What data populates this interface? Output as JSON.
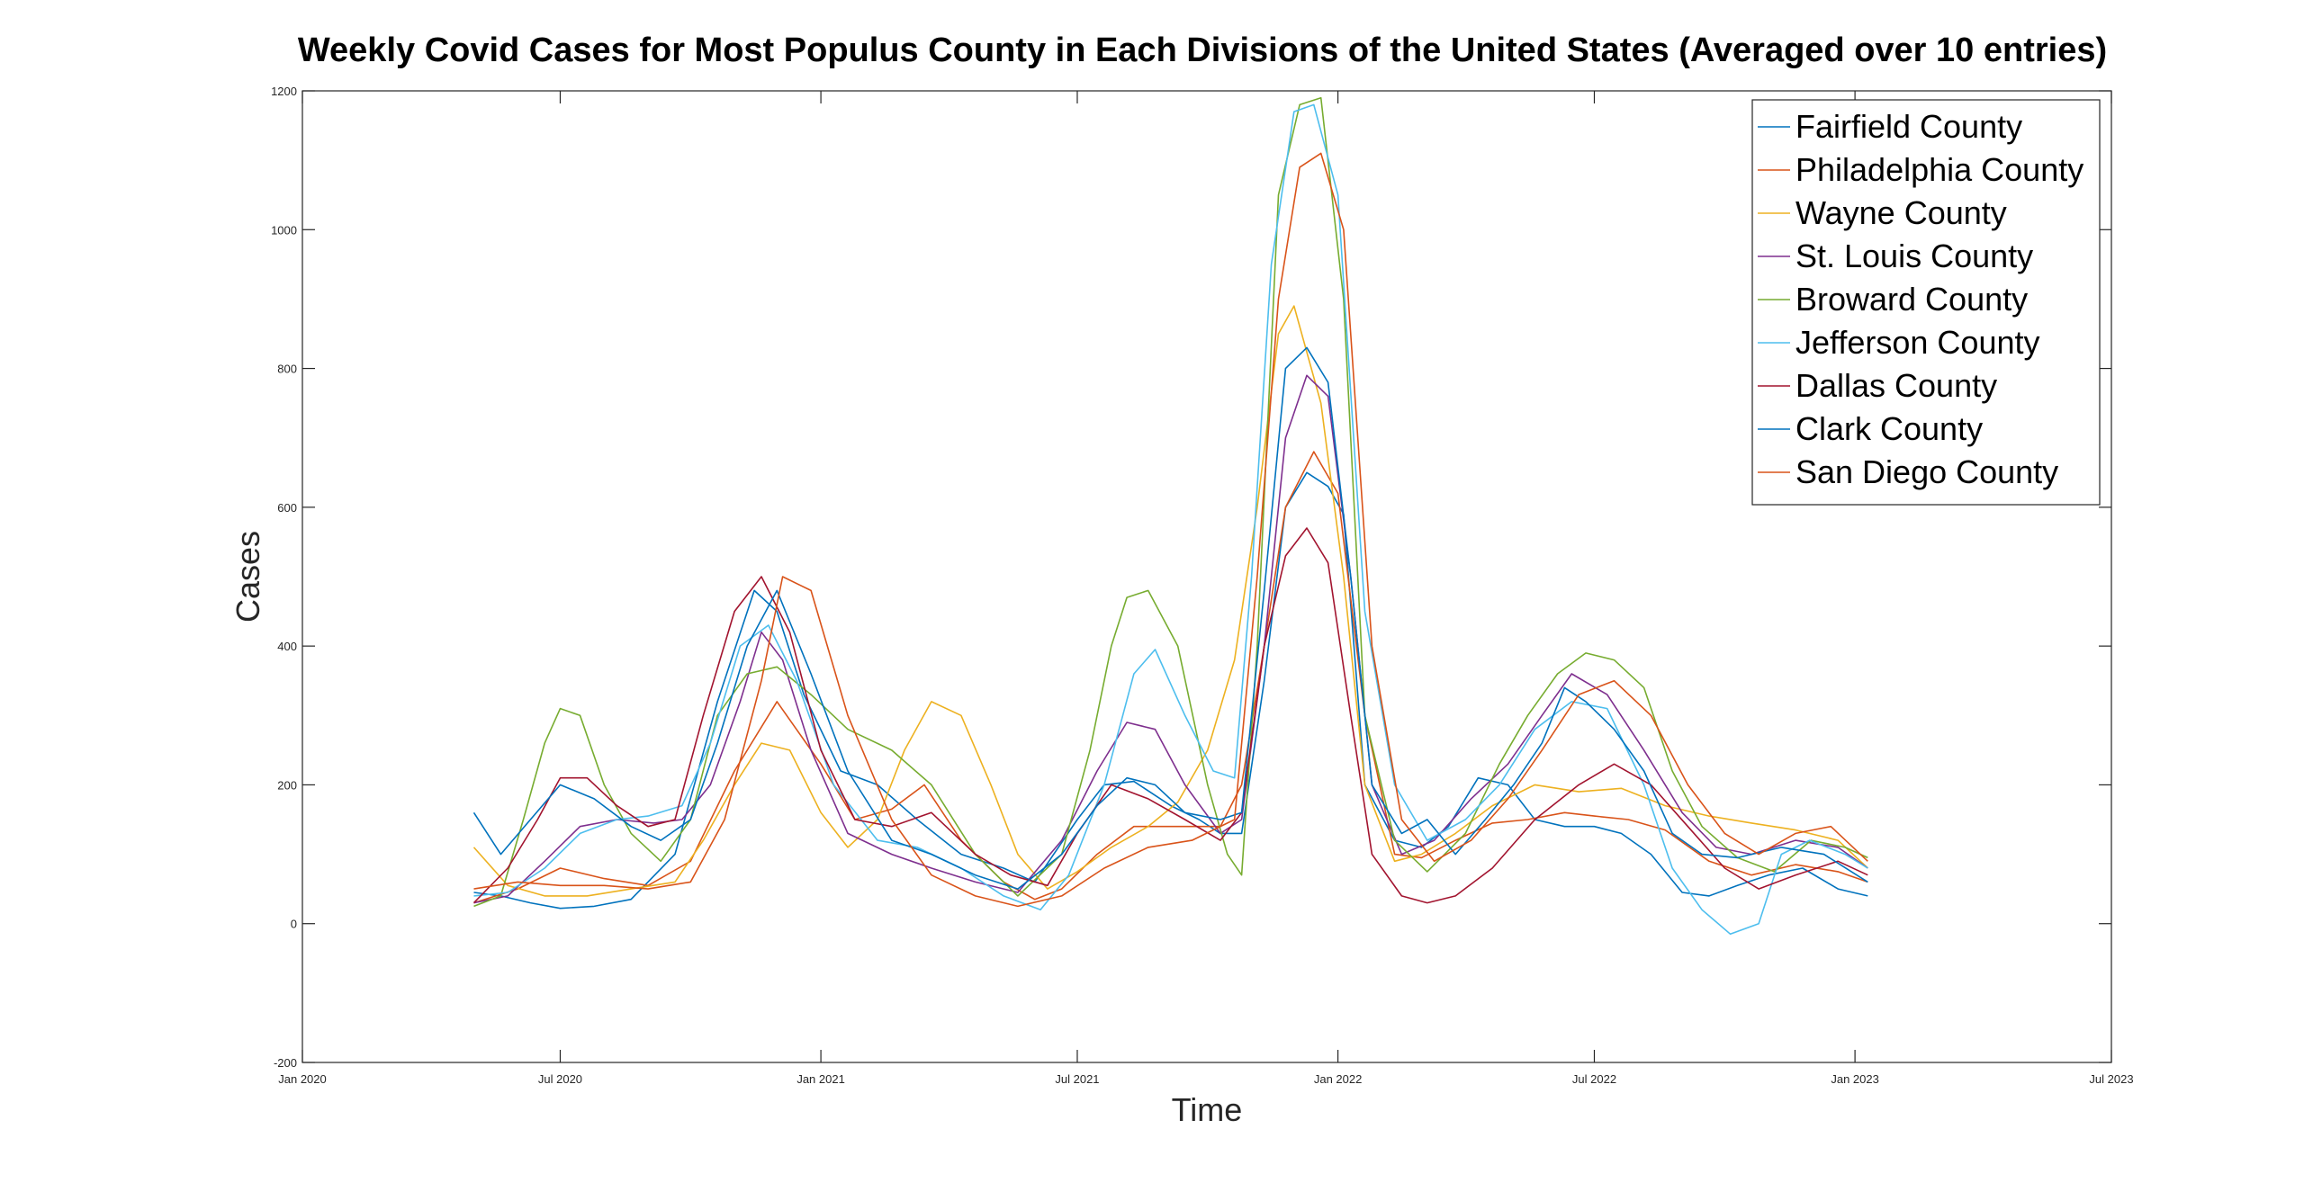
{
  "chart_data": {
    "type": "line",
    "title": "Weekly Covid Cases for Most Populus County in Each Divisions of the United States (Averaged over 10 entries)",
    "xlabel": "Time",
    "ylabel": "Cases",
    "xlim": [
      "2020-01-01",
      "2023-07-01"
    ],
    "ylim": [
      -200,
      1200
    ],
    "xticks": [
      {
        "date": "2020-01-01",
        "label": "Jan 2020"
      },
      {
        "date": "2020-07-01",
        "label": "Jul 2020"
      },
      {
        "date": "2021-01-01",
        "label": "Jan 2021"
      },
      {
        "date": "2021-07-01",
        "label": "Jul 2021"
      },
      {
        "date": "2022-01-01",
        "label": "Jan 2022"
      },
      {
        "date": "2022-07-01",
        "label": "Jul 2022"
      },
      {
        "date": "2023-01-01",
        "label": "Jan 2023"
      },
      {
        "date": "2023-07-01",
        "label": "Jul 2023"
      }
    ],
    "yticks": [
      -200,
      0,
      200,
      400,
      600,
      800,
      1000,
      1200
    ],
    "grid": false,
    "legend_position": "top-right",
    "series": [
      {
        "name": "Fairfield County",
        "color": "#0072BD",
        "x": [
          "2020-05-01",
          "2020-05-20",
          "2020-06-10",
          "2020-07-01",
          "2020-07-25",
          "2020-08-20",
          "2020-09-20",
          "2020-10-20",
          "2020-11-15",
          "2020-12-01",
          "2020-12-20",
          "2021-01-15",
          "2021-02-10",
          "2021-03-10",
          "2021-04-10",
          "2021-05-10",
          "2021-06-01",
          "2021-07-01",
          "2021-07-20",
          "2021-08-10",
          "2021-09-05",
          "2021-09-25",
          "2021-10-10",
          "2021-10-25",
          "2021-11-10",
          "2021-11-25",
          "2021-12-10",
          "2021-12-25",
          "2022-01-05",
          "2022-01-20",
          "2022-02-10",
          "2022-03-01",
          "2022-03-20",
          "2022-04-10",
          "2022-05-01",
          "2022-05-20",
          "2022-06-10",
          "2022-07-01",
          "2022-07-20",
          "2022-08-10",
          "2022-09-01",
          "2022-09-20",
          "2022-10-10",
          "2022-11-01",
          "2022-11-25",
          "2022-12-20",
          "2023-01-10"
        ],
        "y": [
          45,
          40,
          30,
          22,
          25,
          35,
          100,
          320,
          480,
          450,
          330,
          220,
          200,
          150,
          100,
          80,
          60,
          150,
          200,
          205,
          170,
          150,
          130,
          130,
          350,
          600,
          650,
          630,
          590,
          200,
          120,
          110,
          140,
          210,
          200,
          150,
          140,
          140,
          130,
          100,
          45,
          40,
          55,
          70,
          80,
          50,
          40
        ]
      },
      {
        "name": "Philadelphia County",
        "color": "#D95319",
        "x": [
          "2020-05-01",
          "2020-06-01",
          "2020-07-01",
          "2020-08-01",
          "2020-09-01",
          "2020-10-01",
          "2020-11-01",
          "2020-12-01",
          "2021-01-01",
          "2021-01-25",
          "2021-02-20",
          "2021-03-15",
          "2021-04-10",
          "2021-05-10",
          "2021-06-01",
          "2021-06-20",
          "2021-07-15",
          "2021-08-10",
          "2021-09-10",
          "2021-10-10",
          "2021-10-25",
          "2021-11-10",
          "2021-11-25",
          "2021-12-15",
          "2022-01-01",
          "2022-01-20",
          "2022-02-10",
          "2022-03-01",
          "2022-03-25",
          "2022-04-20",
          "2022-05-15",
          "2022-06-10",
          "2022-07-01",
          "2022-07-25",
          "2022-08-20",
          "2022-09-20",
          "2022-10-20",
          "2022-11-20",
          "2022-12-20",
          "2023-01-10"
        ],
        "y": [
          30,
          50,
          80,
          65,
          55,
          90,
          220,
          320,
          230,
          150,
          165,
          200,
          120,
          60,
          35,
          50,
          100,
          140,
          140,
          140,
          200,
          400,
          600,
          680,
          620,
          300,
          100,
          95,
          120,
          145,
          150,
          160,
          155,
          150,
          135,
          90,
          70,
          85,
          75,
          60
        ]
      },
      {
        "name": "Wayne County",
        "color": "#EDB120",
        "x": [
          "2020-05-01",
          "2020-05-25",
          "2020-06-20",
          "2020-07-20",
          "2020-08-20",
          "2020-09-20",
          "2020-10-10",
          "2020-11-01",
          "2020-11-20",
          "2020-12-10",
          "2021-01-01",
          "2021-01-20",
          "2021-02-10",
          "2021-03-01",
          "2021-03-20",
          "2021-04-10",
          "2021-05-01",
          "2021-05-20",
          "2021-06-10",
          "2021-07-01",
          "2021-07-25",
          "2021-08-20",
          "2021-09-10",
          "2021-10-01",
          "2021-10-20",
          "2021-11-05",
          "2021-11-20",
          "2021-12-01",
          "2021-12-20",
          "2022-01-05",
          "2022-01-20",
          "2022-02-10",
          "2022-03-01",
          "2022-03-25",
          "2022-04-20",
          "2022-05-20",
          "2022-06-20",
          "2022-07-20",
          "2022-08-20",
          "2022-09-20",
          "2022-10-20",
          "2022-11-20",
          "2022-12-20",
          "2023-01-10"
        ],
        "y": [
          110,
          55,
          40,
          40,
          50,
          60,
          120,
          200,
          260,
          250,
          160,
          110,
          150,
          250,
          320,
          300,
          200,
          100,
          50,
          75,
          110,
          140,
          175,
          250,
          380,
          600,
          850,
          890,
          750,
          500,
          200,
          90,
          100,
          130,
          170,
          200,
          190,
          195,
          170,
          155,
          145,
          135,
          120,
          80
        ]
      },
      {
        "name": "St. Louis County",
        "color": "#7E2F8E",
        "x": [
          "2020-05-01",
          "2020-05-25",
          "2020-06-20",
          "2020-07-15",
          "2020-08-10",
          "2020-09-05",
          "2020-09-25",
          "2020-10-15",
          "2020-11-05",
          "2020-11-20",
          "2020-12-05",
          "2020-12-25",
          "2021-01-20",
          "2021-02-20",
          "2021-03-20",
          "2021-04-20",
          "2021-05-20",
          "2021-06-20",
          "2021-07-15",
          "2021-08-05",
          "2021-08-25",
          "2021-09-15",
          "2021-10-10",
          "2021-10-25",
          "2021-11-10",
          "2021-11-25",
          "2021-12-10",
          "2021-12-25",
          "2022-01-10",
          "2022-01-25",
          "2022-02-15",
          "2022-03-10",
          "2022-04-05",
          "2022-05-01",
          "2022-05-25",
          "2022-06-15",
          "2022-07-10",
          "2022-08-05",
          "2022-09-01",
          "2022-09-25",
          "2022-10-20",
          "2022-11-20",
          "2022-12-20",
          "2023-01-10"
        ],
        "y": [
          30,
          40,
          90,
          140,
          150,
          145,
          150,
          200,
          320,
          420,
          380,
          250,
          130,
          100,
          80,
          60,
          45,
          120,
          220,
          290,
          280,
          200,
          130,
          150,
          400,
          700,
          790,
          760,
          500,
          200,
          100,
          120,
          180,
          230,
          300,
          360,
          330,
          250,
          160,
          110,
          100,
          120,
          110,
          80
        ]
      },
      {
        "name": "Broward County",
        "color": "#77AC30",
        "x": [
          "2020-05-01",
          "2020-05-20",
          "2020-06-05",
          "2020-06-20",
          "2020-07-01",
          "2020-07-15",
          "2020-08-01",
          "2020-08-20",
          "2020-09-10",
          "2020-10-01",
          "2020-10-20",
          "2020-11-10",
          "2020-12-01",
          "2020-12-25",
          "2021-01-20",
          "2021-02-20",
          "2021-03-20",
          "2021-04-20",
          "2021-05-20",
          "2021-06-20",
          "2021-07-10",
          "2021-07-25",
          "2021-08-05",
          "2021-08-20",
          "2021-09-10",
          "2021-10-01",
          "2021-10-15",
          "2021-10-25",
          "2021-11-05",
          "2021-11-20",
          "2021-12-05",
          "2021-12-20",
          "2022-01-05",
          "2022-01-20",
          "2022-02-10",
          "2022-03-05",
          "2022-04-01",
          "2022-04-25",
          "2022-05-15",
          "2022-06-05",
          "2022-06-25",
          "2022-07-15",
          "2022-08-05",
          "2022-08-25",
          "2022-09-15",
          "2022-10-10",
          "2022-11-05",
          "2022-12-01",
          "2022-12-25",
          "2023-01-10"
        ],
        "y": [
          25,
          40,
          150,
          260,
          310,
          300,
          200,
          130,
          90,
          150,
          300,
          360,
          370,
          330,
          280,
          250,
          200,
          100,
          40,
          100,
          250,
          400,
          470,
          480,
          400,
          200,
          100,
          70,
          400,
          1050,
          1180,
          1190,
          900,
          300,
          120,
          75,
          130,
          230,
          300,
          360,
          390,
          380,
          340,
          220,
          140,
          95,
          75,
          120,
          110,
          95
        ]
      },
      {
        "name": "Jefferson County",
        "color": "#4DBEEE",
        "x": [
          "2020-05-01",
          "2020-05-25",
          "2020-06-20",
          "2020-07-15",
          "2020-08-10",
          "2020-09-01",
          "2020-09-25",
          "2020-10-15",
          "2020-11-05",
          "2020-11-25",
          "2020-12-15",
          "2021-01-10",
          "2021-02-10",
          "2021-03-10",
          "2021-04-10",
          "2021-05-10",
          "2021-06-05",
          "2021-06-25",
          "2021-07-20",
          "2021-08-10",
          "2021-08-25",
          "2021-09-15",
          "2021-10-05",
          "2021-10-20",
          "2021-11-01",
          "2021-11-15",
          "2021-12-01",
          "2021-12-15",
          "2022-01-01",
          "2022-01-20",
          "2022-02-10",
          "2022-03-05",
          "2022-04-01",
          "2022-04-25",
          "2022-05-20",
          "2022-06-15",
          "2022-07-10",
          "2022-08-05",
          "2022-08-25",
          "2022-09-15",
          "2022-10-05",
          "2022-10-25",
          "2022-11-10",
          "2022-11-30",
          "2022-12-25",
          "2023-01-10"
        ],
        "y": [
          40,
          45,
          80,
          130,
          150,
          155,
          170,
          260,
          400,
          430,
          350,
          200,
          120,
          110,
          80,
          40,
          20,
          70,
          200,
          360,
          395,
          300,
          220,
          210,
          500,
          950,
          1170,
          1180,
          1050,
          450,
          200,
          120,
          150,
          200,
          280,
          320,
          310,
          200,
          80,
          20,
          -15,
          0,
          100,
          120,
          100,
          80
        ]
      },
      {
        "name": "Dallas County",
        "color": "#A2142F",
        "x": [
          "2020-05-01",
          "2020-05-25",
          "2020-06-15",
          "2020-07-01",
          "2020-07-20",
          "2020-08-10",
          "2020-09-01",
          "2020-09-20",
          "2020-10-10",
          "2020-11-01",
          "2020-11-20",
          "2020-12-10",
          "2021-01-01",
          "2021-01-25",
          "2021-02-20",
          "2021-03-20",
          "2021-04-20",
          "2021-05-15",
          "2021-06-10",
          "2021-07-01",
          "2021-07-25",
          "2021-08-20",
          "2021-09-15",
          "2021-10-10",
          "2021-10-25",
          "2021-11-10",
          "2021-11-25",
          "2021-12-10",
          "2021-12-25",
          "2022-01-10",
          "2022-01-25",
          "2022-02-15",
          "2022-03-05",
          "2022-03-25",
          "2022-04-20",
          "2022-05-20",
          "2022-06-20",
          "2022-07-15",
          "2022-08-10",
          "2022-09-05",
          "2022-10-01",
          "2022-10-25",
          "2022-11-20",
          "2022-12-20",
          "2023-01-10"
        ],
        "y": [
          30,
          80,
          150,
          210,
          210,
          170,
          140,
          150,
          300,
          450,
          500,
          420,
          250,
          150,
          140,
          160,
          100,
          70,
          55,
          130,
          200,
          180,
          150,
          120,
          160,
          400,
          530,
          570,
          520,
          300,
          100,
          40,
          30,
          40,
          80,
          150,
          200,
          230,
          200,
          140,
          80,
          50,
          70,
          90,
          70
        ]
      },
      {
        "name": "Clark County",
        "color": "#0072BD",
        "x": [
          "2020-05-01",
          "2020-05-20",
          "2020-06-10",
          "2020-07-01",
          "2020-07-25",
          "2020-08-20",
          "2020-09-10",
          "2020-10-01",
          "2020-10-20",
          "2020-11-10",
          "2020-12-01",
          "2020-12-25",
          "2021-01-20",
          "2021-02-20",
          "2021-03-20",
          "2021-04-20",
          "2021-05-20",
          "2021-06-20",
          "2021-07-15",
          "2021-08-05",
          "2021-08-25",
          "2021-09-15",
          "2021-10-10",
          "2021-10-25",
          "2021-11-10",
          "2021-11-25",
          "2021-12-10",
          "2021-12-25",
          "2022-01-10",
          "2022-01-25",
          "2022-02-15",
          "2022-03-05",
          "2022-03-25",
          "2022-04-15",
          "2022-05-05",
          "2022-05-25",
          "2022-06-10",
          "2022-06-25",
          "2022-07-15",
          "2022-08-05",
          "2022-08-25",
          "2022-09-15",
          "2022-10-10",
          "2022-11-10",
          "2022-12-10",
          "2023-01-10"
        ],
        "y": [
          160,
          100,
          150,
          200,
          180,
          140,
          120,
          150,
          260,
          400,
          480,
          360,
          220,
          120,
          100,
          70,
          50,
          100,
          170,
          210,
          200,
          160,
          150,
          160,
          480,
          800,
          830,
          780,
          500,
          200,
          130,
          150,
          100,
          150,
          200,
          260,
          340,
          320,
          280,
          220,
          130,
          100,
          95,
          110,
          100,
          60
        ]
      },
      {
        "name": "San Diego County",
        "color": "#D95319",
        "x": [
          "2020-05-01",
          "2020-06-01",
          "2020-07-01",
          "2020-08-01",
          "2020-09-01",
          "2020-10-01",
          "2020-10-25",
          "2020-11-20",
          "2020-12-05",
          "2020-12-25",
          "2021-01-20",
          "2021-02-20",
          "2021-03-20",
          "2021-04-20",
          "2021-05-20",
          "2021-06-20",
          "2021-07-20",
          "2021-08-20",
          "2021-09-20",
          "2021-10-20",
          "2021-11-05",
          "2021-11-20",
          "2021-12-05",
          "2021-12-20",
          "2022-01-05",
          "2022-01-25",
          "2022-02-15",
          "2022-03-10",
          "2022-04-05",
          "2022-05-01",
          "2022-05-25",
          "2022-06-20",
          "2022-07-15",
          "2022-08-10",
          "2022-09-05",
          "2022-10-01",
          "2022-10-25",
          "2022-11-20",
          "2022-12-15",
          "2023-01-10"
        ],
        "y": [
          50,
          60,
          55,
          55,
          50,
          60,
          150,
          350,
          500,
          480,
          300,
          150,
          70,
          40,
          25,
          40,
          80,
          110,
          120,
          150,
          500,
          900,
          1090,
          1110,
          1000,
          400,
          150,
          90,
          120,
          180,
          250,
          330,
          350,
          300,
          200,
          130,
          100,
          130,
          140,
          90
        ]
      }
    ]
  }
}
